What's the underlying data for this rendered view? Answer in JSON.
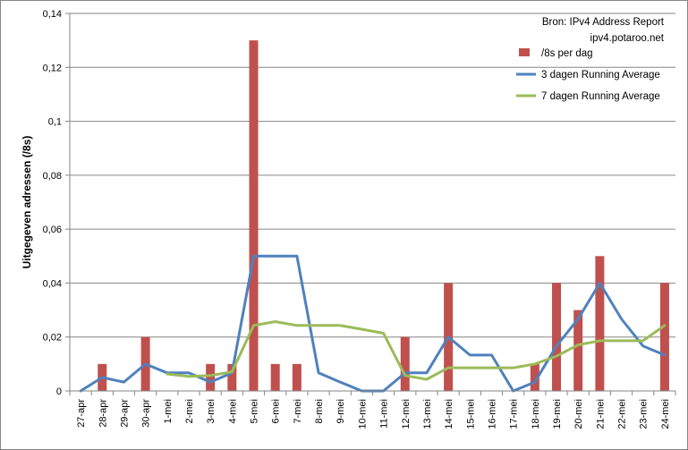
{
  "chart_data": {
    "type": "bar",
    "ylabel": "Uitgegeven adressen (/8s)",
    "xlabel": "",
    "ylim": [
      0,
      0.14
    ],
    "yticks": [
      "0",
      "0,02",
      "0,04",
      "0,06",
      "0,08",
      "0,1",
      "0,12",
      "0,14"
    ],
    "categories": [
      "27-apr",
      "28-apr",
      "29-apr",
      "30-apr",
      "1-mei",
      "2-mei",
      "3-mei",
      "4-mei",
      "5-mei",
      "6-mei",
      "7-mei",
      "8-mei",
      "9-mei",
      "10-mei",
      "11-mei",
      "12-mei",
      "13-mei",
      "14-mei",
      "15-mei",
      "16-mei",
      "17-mei",
      "18-mei",
      "19-mei",
      "20-mei",
      "21-mei",
      "22-mei",
      "23-mei",
      "24-mei"
    ],
    "annotation": [
      "Bron: IPv4 Address Report",
      "ipv4.potaroo.net"
    ],
    "legend_position": "top-right",
    "series": [
      {
        "name": "/8s per dag",
        "kind": "bar",
        "color": "#C0504D",
        "values": [
          0,
          0.01,
          0,
          0.02,
          0,
          0,
          0.01,
          0.01,
          0.13,
          0.01,
          0.01,
          0,
          0,
          0,
          0,
          0.02,
          0,
          0.04,
          0,
          0,
          0,
          0.01,
          0.04,
          0.03,
          0.05,
          0,
          0,
          0.04
        ]
      },
      {
        "name": "3 dagen Running Average",
        "kind": "line",
        "color": "#4F81BD",
        "values": [
          0,
          0.005,
          0.0033,
          0.01,
          0.0067,
          0.0067,
          0.0033,
          0.0067,
          0.05,
          0.05,
          0.05,
          0.0067,
          0.0033,
          0,
          0,
          0.0067,
          0.0067,
          0.02,
          0.0133,
          0.0133,
          0,
          0.0033,
          0.0167,
          0.0267,
          0.04,
          0.0267,
          0.0167,
          0.0133
        ]
      },
      {
        "name": "7 dagen Running Average",
        "kind": "line",
        "color": "#9BBB59",
        "values": [
          null,
          null,
          null,
          null,
          0.0063,
          0.0054,
          0.0057,
          0.0071,
          0.0243,
          0.0257,
          0.0243,
          0.0243,
          0.0243,
          0.0229,
          0.0214,
          0.0057,
          0.0043,
          0.0086,
          0.0086,
          0.0086,
          0.0086,
          0.01,
          0.0129,
          0.0171,
          0.0186,
          0.0186,
          0.0186,
          0.0243
        ]
      }
    ]
  }
}
